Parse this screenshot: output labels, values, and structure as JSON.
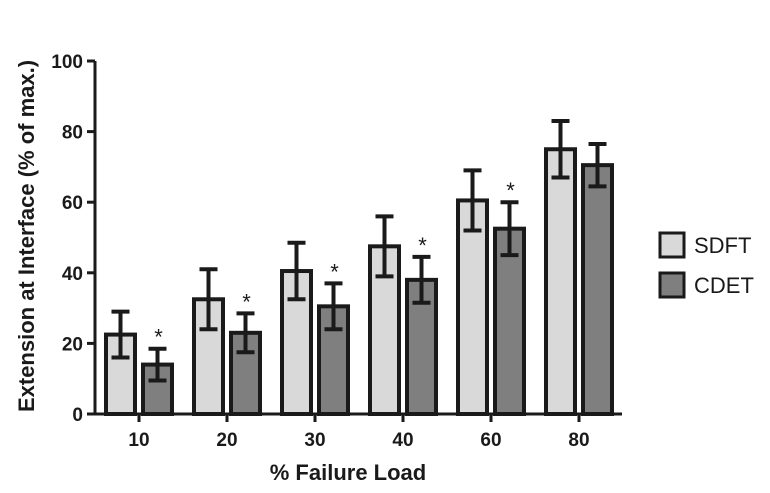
{
  "chart_data": {
    "type": "bar",
    "title": "",
    "xlabel": "% Failure Load",
    "ylabel": "Extension at Interface (% of max.)",
    "ylim": [
      0,
      100
    ],
    "yticks": [
      0,
      20,
      40,
      60,
      80,
      100
    ],
    "categories": [
      "10",
      "20",
      "30",
      "40",
      "60",
      "80"
    ],
    "series": [
      {
        "name": "SDFT",
        "color": "#d9d9d9",
        "values": [
          22.5,
          32.5,
          40.5,
          47.5,
          60.5,
          75
        ],
        "errors": [
          6.5,
          8.5,
          8,
          8.5,
          8.5,
          8
        ]
      },
      {
        "name": "CDET",
        "color": "#7f7f7f",
        "values": [
          14,
          23,
          30.5,
          38,
          52.5,
          70.5
        ],
        "errors": [
          4.5,
          5.5,
          6.5,
          6.5,
          7.5,
          6
        ]
      }
    ],
    "significance": [
      "*",
      "*",
      "*",
      "*",
      "*",
      ""
    ],
    "grid": false,
    "legend_position": "right"
  }
}
